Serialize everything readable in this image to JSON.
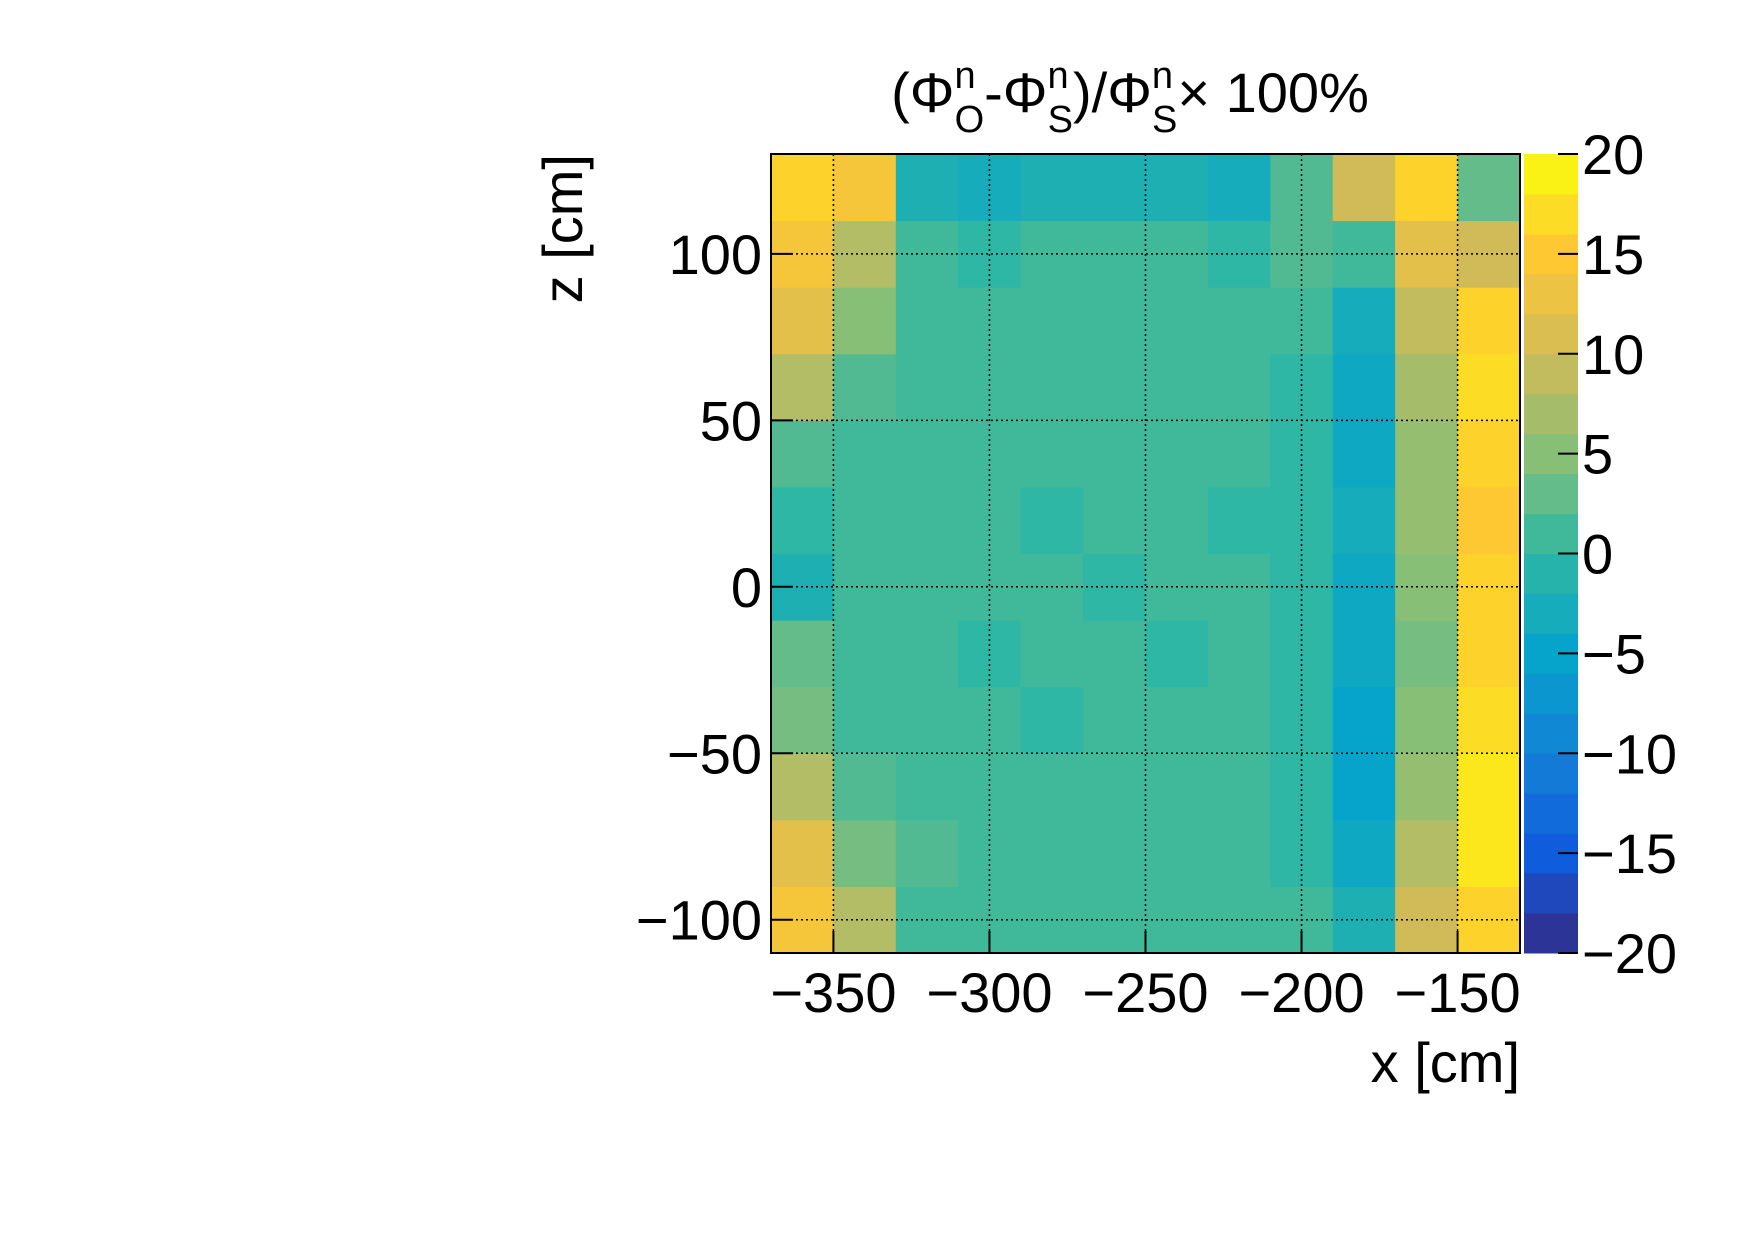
{
  "chart_data": {
    "type": "heatmap",
    "title_parts": [
      "(Φ",
      "n",
      "O",
      "-Φ",
      "n",
      "S",
      ")/Φ",
      "n",
      "S",
      "× 100%"
    ],
    "x_label": "x [cm]",
    "y_label": "z [cm]",
    "xbins": [
      -370,
      -350,
      -330,
      -310,
      -290,
      -270,
      -250,
      -230,
      -210,
      -190,
      -170,
      -150,
      -130
    ],
    "ybins": [
      -110,
      -90,
      -70,
      -50,
      -30,
      -10,
      10,
      30,
      50,
      70,
      90,
      110,
      130
    ],
    "values": [
      [
        14,
        8,
        1,
        1,
        1,
        1,
        1,
        1,
        1,
        -2,
        10,
        16
      ],
      [
        12,
        4,
        2,
        1,
        1,
        1,
        1,
        1,
        0,
        -4,
        8,
        18
      ],
      [
        8,
        2,
        1,
        1,
        1,
        1,
        1,
        1,
        0,
        -5,
        6,
        18
      ],
      [
        4,
        1,
        1,
        1,
        0,
        1,
        1,
        1,
        0,
        -5,
        5,
        17
      ],
      [
        3,
        1,
        1,
        0,
        1,
        1,
        0,
        1,
        0,
        -4,
        4,
        16
      ],
      [
        -2,
        1,
        1,
        1,
        1,
        0,
        1,
        1,
        0,
        -4,
        5,
        16
      ],
      [
        0,
        1,
        1,
        1,
        0,
        1,
        1,
        0,
        0,
        -3,
        6,
        15
      ],
      [
        2,
        1,
        1,
        1,
        1,
        1,
        1,
        1,
        0,
        -4,
        6,
        16
      ],
      [
        8,
        2,
        1,
        1,
        1,
        1,
        1,
        1,
        0,
        -4,
        7,
        17
      ],
      [
        12,
        5,
        1,
        1,
        1,
        1,
        1,
        1,
        1,
        -3,
        9,
        16
      ],
      [
        14,
        8,
        1,
        0,
        1,
        1,
        1,
        0,
        2,
        1,
        12,
        10
      ],
      [
        16,
        14,
        -2,
        -3,
        -2,
        -2,
        -2,
        -3,
        2,
        10,
        16,
        3
      ]
    ],
    "xlim": [
      -370,
      -130
    ],
    "ylim": [
      -110,
      130
    ],
    "zlim": [
      -20,
      20
    ],
    "xticks": [
      {
        "value": -350,
        "label": "−350"
      },
      {
        "value": -300,
        "label": "−300"
      },
      {
        "value": -250,
        "label": "−250"
      },
      {
        "value": -200,
        "label": "−200"
      },
      {
        "value": -150,
        "label": "−150"
      }
    ],
    "yticks": [
      {
        "value": -100,
        "label": "−100"
      },
      {
        "value": -50,
        "label": "−50"
      },
      0,
      50,
      100
    ],
    "zticks": [
      {
        "value": -20,
        "label": "−20"
      },
      {
        "value": -15,
        "label": "−15"
      },
      {
        "value": -10,
        "label": "−10"
      },
      {
        "value": -5,
        "label": "−5"
      },
      0,
      5,
      10,
      15,
      20
    ],
    "colorscale": [
      "#352a87",
      "#0f5cdd",
      "#1481d6",
      "#06a4ca",
      "#2eb7a4",
      "#87bf77",
      "#d1bb59",
      "#fec832",
      "#f9fb0e"
    ],
    "grid": true
  }
}
